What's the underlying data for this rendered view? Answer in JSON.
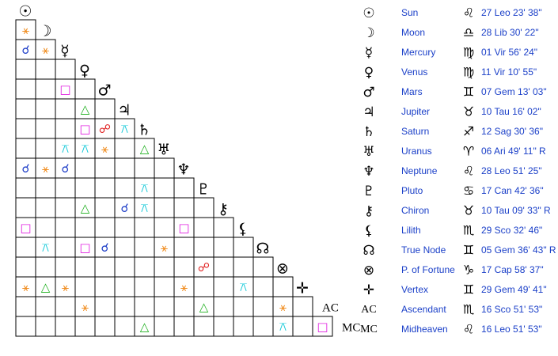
{
  "planets": [
    {
      "glyph": "☉",
      "name": "Sun",
      "sign": "♌",
      "position": "27 Leo 23' 38\""
    },
    {
      "glyph": "☽",
      "name": "Moon",
      "sign": "♎",
      "position": "28 Lib 30' 22\""
    },
    {
      "glyph": "☿",
      "name": "Mercury",
      "sign": "♍",
      "position": "01 Vir 56' 24\""
    },
    {
      "glyph": "♀",
      "name": "Venus",
      "sign": "♍",
      "position": "11 Vir 10' 55\""
    },
    {
      "glyph": "♂",
      "name": "Mars",
      "sign": "♊",
      "position": "07 Gem 13' 03\""
    },
    {
      "glyph": "♃",
      "name": "Jupiter",
      "sign": "♉",
      "position": "10 Tau 16' 02\""
    },
    {
      "glyph": "♄",
      "name": "Saturn",
      "sign": "♐",
      "position": "12 Sag 30' 36\""
    },
    {
      "glyph": "♅",
      "name": "Uranus",
      "sign": "♈",
      "position": "06 Ari 49' 11\" R"
    },
    {
      "glyph": "♆",
      "name": "Neptune",
      "sign": "♌",
      "position": "28 Leo 51' 25\""
    },
    {
      "glyph": "♇",
      "name": "Pluto",
      "sign": "♋",
      "position": "17 Can 42' 36\""
    },
    {
      "glyph": "⚷",
      "name": "Chiron",
      "sign": "♉",
      "position": "10 Tau 09' 33\" R"
    },
    {
      "glyph": "⚸",
      "name": "Lilith",
      "sign": "♏",
      "position": "29 Sco 32' 46\""
    },
    {
      "glyph": "☊",
      "name": "True Node",
      "sign": "♊",
      "position": "05 Gem 36' 43\" R"
    },
    {
      "glyph": "⊗",
      "name": "P. of Fortune",
      "sign": "♑",
      "position": "17 Cap 58' 37\""
    },
    {
      "glyph": "✛",
      "name": "Vertex",
      "sign": "♊",
      "position": "29 Gem 49' 41\""
    },
    {
      "glyph": "AC",
      "name": "Ascendant",
      "sign": "♏",
      "position": "16 Sco 51' 53\""
    },
    {
      "glyph": "MC",
      "name": "Midheaven",
      "sign": "♌",
      "position": "16 Leo 51' 53\""
    }
  ],
  "aspect_colors": {
    "⚹": "#f08c1e",
    "☌": "#1f3fc8",
    "□": "#e020e0",
    "△": "#20b020",
    "☍": "#e02020",
    "⚻": "#10c8d8"
  },
  "grid": [
    [
      "⚹"
    ],
    [
      "☌",
      "⚹"
    ],
    [
      null,
      null,
      null
    ],
    [
      null,
      null,
      "□",
      null
    ],
    [
      null,
      null,
      null,
      "△",
      null
    ],
    [
      null,
      null,
      null,
      "□",
      "☍",
      "⚻"
    ],
    [
      null,
      null,
      "⚻",
      "⚻",
      "⚹",
      null,
      "△"
    ],
    [
      "☌",
      "⚹",
      "☌",
      null,
      null,
      null,
      null,
      null
    ],
    [
      null,
      null,
      null,
      null,
      null,
      null,
      "⚻",
      null,
      null
    ],
    [
      null,
      null,
      null,
      "△",
      null,
      "☌",
      "⚻",
      null,
      null,
      null
    ],
    [
      "□",
      null,
      null,
      null,
      null,
      null,
      null,
      null,
      "□",
      null,
      null
    ],
    [
      null,
      "⚻",
      null,
      "□",
      "☌",
      null,
      null,
      "⚹",
      null,
      null,
      null,
      null
    ],
    [
      null,
      null,
      null,
      null,
      null,
      null,
      null,
      null,
      null,
      "☍",
      null,
      null,
      null
    ],
    [
      "⚹",
      "△",
      "⚹",
      null,
      null,
      null,
      null,
      null,
      "⚹",
      null,
      null,
      "⚻",
      null,
      null
    ],
    [
      null,
      null,
      null,
      "⚹",
      null,
      null,
      null,
      null,
      null,
      "△",
      null,
      null,
      null,
      "⚹",
      null
    ],
    [
      null,
      null,
      null,
      null,
      null,
      null,
      "△",
      null,
      null,
      null,
      null,
      null,
      null,
      "⚻",
      null,
      "□"
    ]
  ]
}
